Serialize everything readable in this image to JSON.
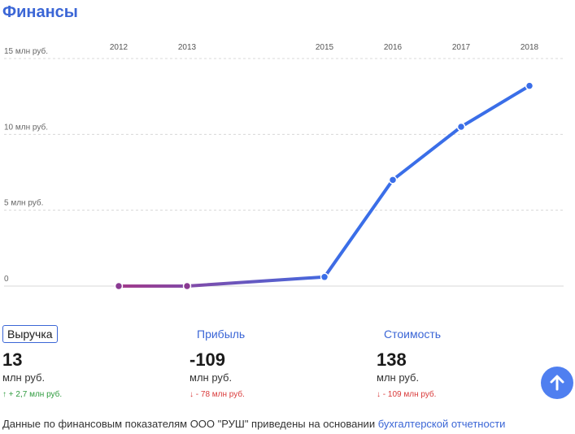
{
  "title": "Финансы",
  "chart_data": {
    "type": "line",
    "x": [
      "2012",
      "2013",
      "2015",
      "2016",
      "2017",
      "2018"
    ],
    "y_ticks": [
      {
        "value": 15,
        "label": "15 млн руб."
      },
      {
        "value": 10,
        "label": "10 млн руб."
      },
      {
        "value": 5,
        "label": "5 млн руб."
      },
      {
        "value": 0,
        "label": "0"
      }
    ],
    "ylim": [
      0,
      15
    ],
    "series": [
      {
        "values": [
          0.0,
          0.0,
          0.6,
          7.0,
          10.5,
          13.2
        ]
      }
    ],
    "grid": true,
    "colors": {
      "start": "#a23a8a",
      "end": "#3a6ee8"
    }
  },
  "metrics": [
    {
      "label": "Выручка",
      "value": "13",
      "unit": "млн руб.",
      "arrow": "↑",
      "delta": "+ 2,7 млн руб.",
      "trend": "up"
    },
    {
      "label": "Прибыль",
      "value": "-109",
      "unit": "млн руб.",
      "arrow": "↓",
      "delta": "- 78 млн руб.",
      "trend": "down"
    },
    {
      "label": "Стоимость",
      "value": "138",
      "unit": "млн руб.",
      "arrow": "↓",
      "delta": "- 109 млн руб.",
      "trend": "down"
    }
  ],
  "footer": {
    "text": "Данные по финансовым показателям ООО \"РУШ\" приведены на основании",
    "link": "бухгалтерской отчетности"
  },
  "scroll_top_icon": "arrow-up-icon"
}
